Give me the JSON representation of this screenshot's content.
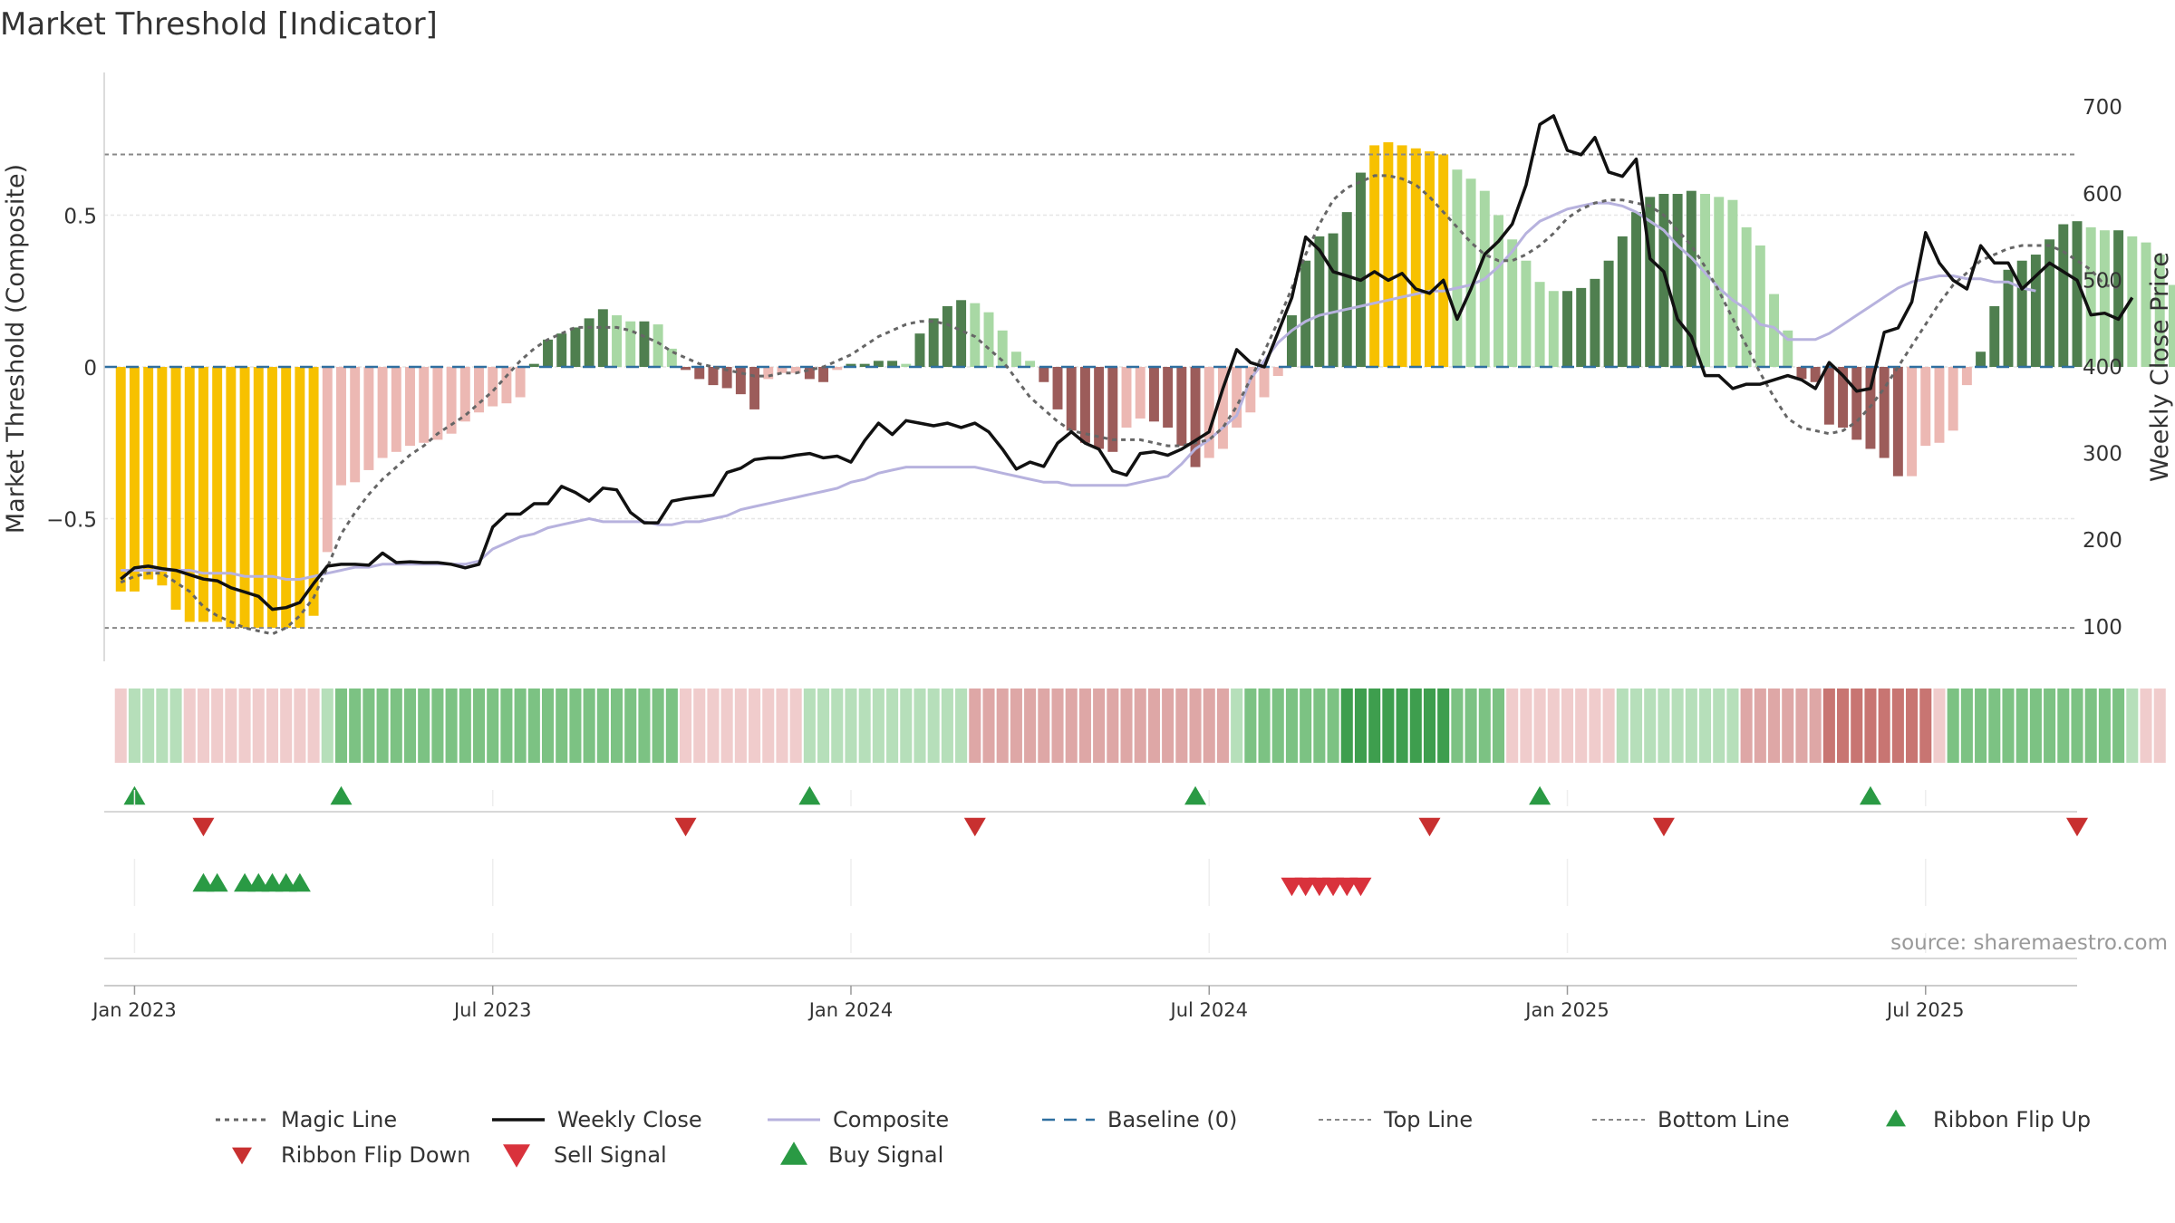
{
  "chart_data": {
    "type": "bar",
    "title": "Market Threshold [Indicator]",
    "ylabel_left": "Market Threshold (Composite)",
    "ylabel_right": "Weekly Close Price",
    "source": "source: sharemaestro.com",
    "left_ticks": [
      {
        "v": 0.5,
        "label": "0.5"
      },
      {
        "v": 0,
        "label": "0"
      },
      {
        "v": -0.5,
        "label": "−0.5"
      }
    ],
    "right_ticks": [
      700,
      600,
      500,
      400,
      300,
      200,
      100
    ],
    "left_ylim": [
      -0.97,
      0.97
    ],
    "right_ylim": [
      60,
      740
    ],
    "x_ticks": [
      {
        "week": 1,
        "label": "Jan 2023"
      },
      {
        "week": 27,
        "label": "Jul 2023"
      },
      {
        "week": 53,
        "label": "Jan 2024"
      },
      {
        "week": 79,
        "label": "Jul 2024"
      },
      {
        "week": 105,
        "label": "Jan 2025"
      },
      {
        "week": 131,
        "label": "Jul 2025"
      }
    ],
    "week_range": [
      -1.2,
      142
    ],
    "top_line": 0.7,
    "bottom_line": -0.86,
    "composite": [
      -0.74,
      -0.74,
      -0.7,
      -0.72,
      -0.8,
      -0.84,
      -0.84,
      -0.84,
      -0.86,
      -0.86,
      -0.86,
      -0.86,
      -0.86,
      -0.86,
      -0.82,
      -0.61,
      -0.39,
      -0.38,
      -0.34,
      -0.3,
      -0.28,
      -0.26,
      -0.25,
      -0.24,
      -0.22,
      -0.18,
      -0.15,
      -0.13,
      -0.12,
      -0.1,
      0.01,
      0.09,
      0.11,
      0.13,
      0.16,
      0.19,
      0.17,
      0.15,
      0.15,
      0.14,
      0.06,
      -0.01,
      -0.04,
      -0.06,
      -0.07,
      -0.09,
      -0.14,
      -0.04,
      -0.02,
      -0.02,
      -0.04,
      -0.05,
      -0.01,
      0.01,
      0.01,
      0.02,
      0.02,
      0.01,
      0.11,
      0.16,
      0.2,
      0.22,
      0.21,
      0.18,
      0.12,
      0.05,
      0.02,
      -0.05,
      -0.14,
      -0.21,
      -0.25,
      -0.27,
      -0.28,
      -0.2,
      -0.17,
      -0.18,
      -0.2,
      -0.26,
      -0.33,
      -0.3,
      -0.27,
      -0.2,
      -0.15,
      -0.1,
      -0.03,
      0.17,
      0.35,
      0.43,
      0.44,
      0.51,
      0.64,
      0.73,
      0.74,
      0.73,
      0.72,
      0.71,
      0.7,
      0.65,
      0.62,
      0.58,
      0.5,
      0.42,
      0.35,
      0.28,
      0.25,
      0.25,
      0.26,
      0.29,
      0.35,
      0.43,
      0.51,
      0.56,
      0.57,
      0.57,
      0.58,
      0.57,
      0.56,
      0.55,
      0.46,
      0.4,
      0.24,
      0.12,
      -0.04,
      -0.05,
      -0.19,
      -0.2,
      -0.24,
      -0.27,
      -0.3,
      -0.36,
      -0.36,
      -0.26,
      -0.25,
      -0.21,
      -0.06,
      0.05,
      0.2,
      0.32,
      0.35,
      0.37,
      0.42,
      0.47,
      0.48,
      0.46,
      0.45,
      0.45,
      0.43,
      0.41,
      0.37,
      0.27,
      0.1,
      0.11
    ],
    "close": [
      155,
      168,
      170,
      167,
      165,
      160,
      155,
      153,
      145,
      140,
      135,
      120,
      122,
      128,
      150,
      170,
      172,
      172,
      171,
      185,
      174,
      175,
      174,
      174,
      172,
      168,
      172,
      215,
      230,
      230,
      242,
      242,
      262,
      255,
      245,
      260,
      258,
      232,
      220,
      220,
      245,
      248,
      250,
      252,
      278,
      283,
      293,
      295,
      295,
      298,
      300,
      295,
      297,
      290,
      315,
      335,
      322,
      338,
      335,
      332,
      335,
      330,
      335,
      325,
      305,
      282,
      290,
      285,
      312,
      325,
      312,
      305,
      280,
      275,
      300,
      302,
      298,
      305,
      315,
      325,
      375,
      420,
      405,
      400,
      440,
      480,
      550,
      535,
      510,
      505,
      500,
      510,
      500,
      508,
      490,
      485,
      500,
      455,
      490,
      530,
      545,
      565,
      610,
      680,
      690,
      650,
      645,
      665,
      625,
      620,
      640,
      525,
      510,
      455,
      435,
      390,
      390,
      375,
      380,
      380,
      385,
      390,
      385,
      375,
      405,
      390,
      372,
      375,
      440,
      445,
      475,
      555,
      520,
      500,
      490,
      540,
      520,
      520,
      490,
      505,
      520,
      510,
      500,
      460,
      462,
      455,
      480
    ],
    "magic": [
      -0.71,
      -0.69,
      -0.68,
      -0.68,
      -0.71,
      -0.74,
      -0.79,
      -0.82,
      -0.84,
      -0.86,
      -0.87,
      -0.88,
      -0.86,
      -0.82,
      -0.76,
      -0.66,
      -0.55,
      -0.48,
      -0.42,
      -0.37,
      -0.33,
      -0.29,
      -0.26,
      -0.22,
      -0.19,
      -0.16,
      -0.12,
      -0.08,
      -0.03,
      0.02,
      0.06,
      0.09,
      0.11,
      0.13,
      0.13,
      0.13,
      0.13,
      0.12,
      0.1,
      0.08,
      0.05,
      0.03,
      0.01,
      0.0,
      -0.01,
      -0.02,
      -0.03,
      -0.03,
      -0.02,
      -0.02,
      -0.01,
      0.0,
      0.02,
      0.04,
      0.07,
      0.1,
      0.12,
      0.14,
      0.15,
      0.15,
      0.14,
      0.12,
      0.1,
      0.06,
      0.02,
      -0.04,
      -0.1,
      -0.14,
      -0.18,
      -0.21,
      -0.22,
      -0.23,
      -0.24,
      -0.24,
      -0.24,
      -0.25,
      -0.26,
      -0.26,
      -0.25,
      -0.24,
      -0.2,
      -0.13,
      -0.04,
      0.05,
      0.15,
      0.26,
      0.37,
      0.47,
      0.55,
      0.59,
      0.61,
      0.63,
      0.63,
      0.62,
      0.6,
      0.56,
      0.51,
      0.46,
      0.41,
      0.37,
      0.35,
      0.35,
      0.37,
      0.4,
      0.44,
      0.49,
      0.52,
      0.54,
      0.55,
      0.55,
      0.54,
      0.53,
      0.5,
      0.45,
      0.4,
      0.33,
      0.25,
      0.16,
      0.07,
      -0.02,
      -0.1,
      -0.17,
      -0.2,
      -0.21,
      -0.22,
      -0.21,
      -0.18,
      -0.13,
      -0.07,
      0.0,
      0.07,
      0.14,
      0.21,
      0.27,
      0.31,
      0.35,
      0.37,
      0.39,
      0.4,
      0.4,
      0.4,
      0.38,
      0.35,
      0.32,
      0.27,
      0.26
    ],
    "composite_line": [
      -0.67,
      -0.67,
      -0.67,
      -0.67,
      -0.67,
      -0.67,
      -0.68,
      -0.68,
      -0.68,
      -0.69,
      -0.69,
      -0.69,
      -0.7,
      -0.7,
      -0.69,
      -0.68,
      -0.67,
      -0.66,
      -0.66,
      -0.65,
      -0.65,
      -0.65,
      -0.65,
      -0.65,
      -0.65,
      -0.65,
      -0.64,
      -0.6,
      -0.58,
      -0.56,
      -0.55,
      -0.53,
      -0.52,
      -0.51,
      -0.5,
      -0.51,
      -0.51,
      -0.51,
      -0.51,
      -0.52,
      -0.52,
      -0.51,
      -0.51,
      -0.5,
      -0.49,
      -0.47,
      -0.46,
      -0.45,
      -0.44,
      -0.43,
      -0.42,
      -0.41,
      -0.4,
      -0.38,
      -0.37,
      -0.35,
      -0.34,
      -0.33,
      -0.33,
      -0.33,
      -0.33,
      -0.33,
      -0.33,
      -0.34,
      -0.35,
      -0.36,
      -0.37,
      -0.38,
      -0.38,
      -0.39,
      -0.39,
      -0.39,
      -0.39,
      -0.39,
      -0.38,
      -0.37,
      -0.36,
      -0.32,
      -0.27,
      -0.24,
      -0.2,
      -0.16,
      -0.04,
      0.02,
      0.08,
      0.12,
      0.15,
      0.17,
      0.18,
      0.19,
      0.2,
      0.21,
      0.22,
      0.23,
      0.24,
      0.25,
      0.25,
      0.26,
      0.27,
      0.29,
      0.33,
      0.38,
      0.44,
      0.48,
      0.5,
      0.52,
      0.53,
      0.54,
      0.54,
      0.53,
      0.51,
      0.48,
      0.45,
      0.4,
      0.36,
      0.31,
      0.26,
      0.22,
      0.19,
      0.14,
      0.13,
      0.09,
      0.09,
      0.09,
      0.11,
      0.14,
      0.17,
      0.2,
      0.23,
      0.26,
      0.28,
      0.29,
      0.3,
      0.3,
      0.29,
      0.29,
      0.28,
      0.28,
      0.26,
      0.25
    ],
    "ribbon": [
      -1,
      1,
      1,
      1,
      1,
      -1,
      -1,
      -1,
      -1,
      -1,
      -1,
      -1,
      -1,
      -1,
      -1,
      1,
      2,
      2,
      2,
      2,
      2,
      2,
      2,
      2,
      2,
      2,
      2,
      2,
      2,
      2,
      2,
      2,
      2,
      2,
      2,
      2,
      2,
      2,
      2,
      2,
      2,
      -1,
      -1,
      -1,
      -1,
      -1,
      -1,
      -1,
      -1,
      -1,
      1,
      1,
      1,
      1,
      1,
      1,
      1,
      1,
      1,
      1,
      1,
      1,
      -2,
      -2,
      -2,
      -2,
      -2,
      -2,
      -2,
      -2,
      -2,
      -2,
      -2,
      -2,
      -2,
      -2,
      -2,
      -2,
      -2,
      -2,
      -2,
      1,
      2,
      2,
      2,
      2,
      2,
      2,
      2,
      3,
      3,
      3,
      3,
      3,
      3,
      3,
      3,
      2,
      2,
      2,
      2,
      -1,
      -1,
      -1,
      -1,
      -1,
      -1,
      -1,
      -1,
      1,
      1,
      1,
      1,
      1,
      1,
      1,
      1,
      1,
      -2,
      -2,
      -2,
      -2,
      -2,
      -2,
      -3,
      -3,
      -3,
      -3,
      -3,
      -3,
      -3,
      -3,
      -1,
      2,
      2,
      2,
      2,
      2,
      2,
      2,
      2,
      2,
      2,
      2,
      2,
      2,
      1,
      -1,
      -1
    ],
    "ribbon_flip_up": [
      1,
      16,
      50,
      78,
      103,
      127
    ],
    "ribbon_flip_down": [
      6,
      41,
      62,
      95,
      112,
      142
    ],
    "buy_signal": [
      6,
      7,
      9,
      10,
      11,
      12,
      13
    ],
    "sell_signal": [
      85,
      86,
      87,
      88,
      89,
      90
    ]
  },
  "legend": [
    {
      "key": "magic",
      "label": "Magic Line"
    },
    {
      "key": "close",
      "label": "Weekly Close"
    },
    {
      "key": "composite",
      "label": "Composite"
    },
    {
      "key": "baseline",
      "label": "Baseline (0)"
    },
    {
      "key": "top",
      "label": "Top Line"
    },
    {
      "key": "bottom",
      "label": "Bottom Line"
    },
    {
      "key": "flipup",
      "label": "Ribbon Flip Up"
    },
    {
      "key": "flipdown",
      "label": "Ribbon Flip Down"
    },
    {
      "key": "sell",
      "label": "Sell Signal"
    },
    {
      "key": "buy",
      "label": "Buy Signal"
    }
  ],
  "colors": {
    "pos_strong": "#4f7f4f",
    "pos_weak": "#a8d8a4",
    "neg_strong": "#9c5c5a",
    "neg_weak": "#ecb8b3",
    "extreme": "#f7c100",
    "close": "#111111",
    "composite": "#b7b2de",
    "magic": "#666666",
    "baseline": "#2f6fa0",
    "bound": "#888888",
    "buy": "#2a9a44",
    "sell": "#d9323c",
    "flip_down": "#c83030"
  }
}
